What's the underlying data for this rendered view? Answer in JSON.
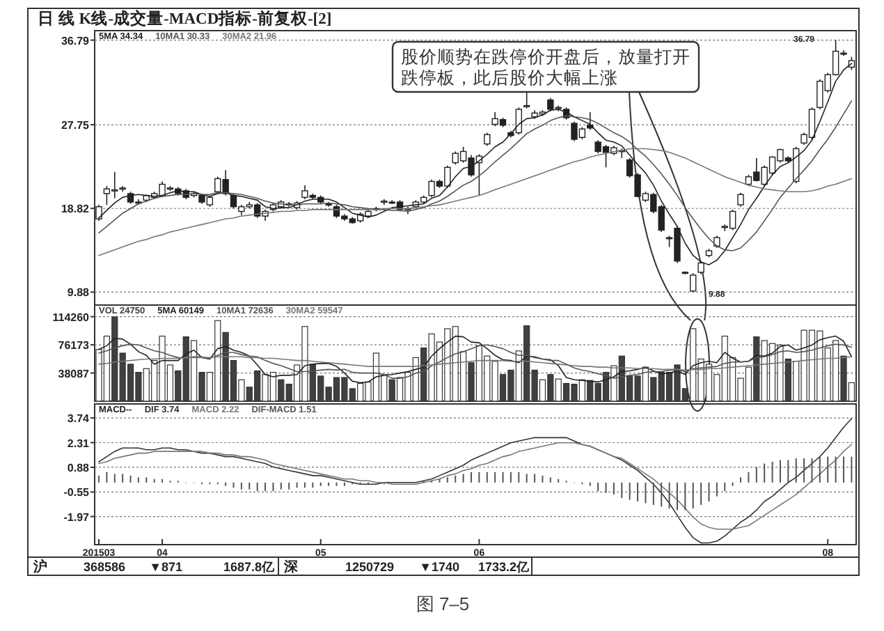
{
  "chart_data": [
    {
      "type": "candlestick",
      "title": "日 线 K线-成交量-MACD指标-前复权-[2]",
      "legend": "top left",
      "grid": "y",
      "tick_labels": "y",
      "categories": [
        null,
        null,
        null,
        null,
        null,
        null,
        null,
        null,
        null,
        null,
        null,
        null,
        null,
        null,
        null,
        null,
        null,
        null,
        null,
        null,
        null,
        null,
        null,
        null,
        null,
        null,
        null,
        null,
        null,
        null,
        null,
        null,
        null,
        null,
        null,
        null,
        null,
        null,
        null,
        null,
        null,
        null,
        null,
        null,
        null,
        null,
        null,
        null,
        null,
        null,
        null,
        null,
        null,
        null,
        null,
        null,
        null,
        null,
        null,
        null,
        null,
        null,
        null,
        null,
        null,
        null,
        null,
        null,
        null,
        null,
        null,
        null,
        null,
        null,
        null,
        null,
        null,
        null,
        null,
        null,
        null,
        null,
        null,
        null,
        null,
        null,
        null,
        null,
        null,
        null,
        null,
        null,
        null,
        null,
        null,
        null
      ],
      "ylim": [
        8.5,
        37.8
      ],
      "yticks": [
        9.88,
        18.82,
        27.75,
        36.79
      ],
      "ohlc": [
        [
          17.7,
          19.2,
          17.5,
          19.0
        ],
        [
          20.4,
          21.2,
          19.2,
          20.9
        ],
        [
          20.7,
          22.7,
          19.9,
          20.8
        ],
        [
          20.9,
          21.2,
          20.6,
          21.0
        ],
        [
          20.4,
          20.6,
          19.3,
          19.5
        ],
        [
          19.5,
          19.8,
          19.2,
          19.4
        ],
        [
          19.7,
          20.3,
          19.5,
          20.2
        ],
        [
          20.0,
          20.6,
          19.8,
          20.4
        ],
        [
          20.2,
          21.7,
          20.0,
          21.4
        ],
        [
          20.9,
          21.2,
          20.7,
          21.0
        ],
        [
          20.9,
          21.1,
          20.2,
          20.4
        ],
        [
          20.7,
          20.9,
          19.8,
          20.0
        ],
        [
          20.2,
          20.6,
          20.0,
          20.4
        ],
        [
          20.2,
          20.4,
          19.3,
          19.5
        ],
        [
          19.2,
          20.2,
          19.0,
          20.0
        ],
        [
          20.6,
          22.2,
          20.4,
          22.0
        ],
        [
          21.9,
          22.9,
          20.2,
          20.4
        ],
        [
          20.2,
          20.4,
          18.8,
          19.0
        ],
        [
          18.5,
          19.2,
          18.1,
          19.0
        ],
        [
          19.0,
          19.5,
          18.8,
          19.2
        ],
        [
          19.2,
          19.4,
          17.8,
          18.0
        ],
        [
          18.0,
          18.7,
          17.5,
          18.5
        ],
        [
          18.7,
          19.4,
          18.5,
          19.2
        ],
        [
          19.0,
          19.7,
          18.8,
          19.5
        ],
        [
          19.2,
          19.5,
          19.0,
          19.3
        ],
        [
          18.9,
          19.6,
          18.7,
          19.4
        ],
        [
          20.0,
          21.3,
          19.8,
          20.7
        ],
        [
          20.2,
          20.4,
          19.8,
          20.0
        ],
        [
          20.0,
          20.2,
          19.3,
          19.5
        ],
        [
          19.3,
          19.5,
          19.0,
          19.2
        ],
        [
          19.0,
          19.2,
          17.8,
          18.0
        ],
        [
          18.0,
          18.2,
          17.5,
          17.7
        ],
        [
          17.7,
          17.9,
          17.2,
          17.3
        ],
        [
          17.5,
          18.4,
          17.3,
          18.2
        ],
        [
          18.0,
          18.7,
          17.8,
          18.5
        ],
        [
          18.7,
          19.0,
          18.5,
          18.8
        ],
        [
          19.5,
          19.8,
          19.2,
          19.6
        ],
        [
          19.5,
          19.7,
          19.3,
          19.4
        ],
        [
          19.5,
          19.7,
          18.5,
          18.7
        ],
        [
          18.7,
          19.0,
          18.2,
          18.8
        ],
        [
          19.0,
          19.7,
          18.8,
          19.5
        ],
        [
          19.5,
          20.2,
          19.3,
          20.0
        ],
        [
          20.2,
          21.9,
          20.0,
          21.7
        ],
        [
          21.7,
          21.9,
          21.0,
          21.2
        ],
        [
          21.2,
          23.4,
          21.0,
          23.2
        ],
        [
          23.7,
          24.9,
          23.5,
          24.7
        ],
        [
          23.9,
          25.4,
          23.7,
          24.9
        ],
        [
          24.2,
          24.5,
          22.2,
          22.4
        ],
        [
          23.7,
          24.6,
          20.2,
          24.4
        ],
        [
          25.7,
          26.9,
          25.5,
          26.7
        ],
        [
          27.8,
          29.1,
          27.6,
          28.4
        ],
        [
          28.3,
          28.5,
          27.5,
          27.7
        ],
        [
          26.9,
          27.1,
          26.4,
          26.6
        ],
        [
          26.9,
          29.6,
          26.7,
          29.4
        ],
        [
          29.7,
          31.4,
          29.5,
          29.8
        ],
        [
          28.6,
          29.3,
          28.4,
          29.0
        ],
        [
          28.9,
          29.3,
          28.7,
          29.1
        ],
        [
          30.4,
          30.6,
          29.2,
          29.4
        ],
        [
          29.5,
          29.8,
          29.2,
          29.6
        ],
        [
          29.4,
          29.6,
          28.3,
          28.5
        ],
        [
          27.9,
          28.1,
          26.0,
          26.2
        ],
        [
          26.4,
          27.5,
          26.2,
          27.3
        ],
        [
          27.7,
          29.1,
          27.2,
          27.4
        ],
        [
          25.9,
          26.1,
          24.7,
          24.9
        ],
        [
          25.4,
          25.6,
          23.2,
          24.8
        ],
        [
          24.7,
          25.5,
          24.5,
          25.3
        ],
        [
          24.9,
          25.2,
          24.2,
          25.0
        ],
        [
          24.0,
          24.2,
          22.1,
          22.3
        ],
        [
          22.4,
          22.6,
          20.0,
          20.1
        ],
        [
          19.7,
          20.6,
          19.5,
          20.4
        ],
        [
          20.3,
          20.5,
          18.3,
          18.5
        ],
        [
          19.0,
          19.2,
          16.3,
          16.5
        ],
        [
          15.7,
          15.9,
          14.7,
          15.6
        ],
        [
          16.7,
          16.9,
          13.0,
          13.2
        ],
        [
          12.0,
          12.1,
          11.8,
          11.9
        ],
        [
          10.0,
          11.9,
          9.88,
          11.7
        ],
        [
          12.0,
          13.2,
          11.8,
          13.0
        ],
        [
          13.8,
          14.5,
          13.6,
          14.3
        ],
        [
          14.8,
          15.9,
          14.6,
          15.7
        ],
        [
          16.8,
          17.1,
          16.4,
          16.9
        ],
        [
          16.7,
          18.7,
          16.5,
          18.5
        ],
        [
          19.2,
          20.5,
          19.0,
          20.3
        ],
        [
          21.4,
          22.4,
          21.2,
          22.2
        ],
        [
          22.7,
          24.2,
          21.7,
          21.8
        ],
        [
          21.4,
          23.4,
          21.2,
          23.2
        ],
        [
          22.6,
          24.4,
          22.4,
          24.3
        ],
        [
          23.9,
          25.2,
          23.7,
          25.1
        ],
        [
          24.2,
          24.4,
          23.7,
          23.9
        ],
        [
          21.7,
          25.4,
          21.5,
          25.2
        ],
        [
          25.8,
          26.9,
          25.6,
          26.7
        ],
        [
          26.4,
          29.6,
          26.2,
          29.4
        ],
        [
          29.6,
          32.6,
          29.4,
          32.4
        ],
        [
          31.4,
          33.3,
          31.2,
          33.1
        ],
        [
          33.1,
          36.79,
          33.0,
          35.6
        ],
        [
          35.4,
          35.7,
          35.1,
          35.3
        ],
        [
          33.9,
          35.0,
          33.6,
          34.6
        ]
      ],
      "series": [
        {
          "name": "5MA 34.34",
          "type": "line",
          "color": "#222222",
          "values": [
            17.8,
            18.6,
            19.4,
            20.0,
            20.2,
            20.3,
            20.2,
            20.1,
            20.2,
            20.5,
            20.7,
            20.6,
            20.6,
            20.3,
            20.1,
            20.4,
            20.5,
            20.2,
            20.1,
            19.9,
            19.7,
            19.0,
            18.8,
            18.9,
            18.9,
            19.2,
            19.6,
            19.8,
            19.8,
            19.8,
            19.5,
            18.9,
            18.3,
            18.1,
            17.9,
            18.1,
            18.5,
            18.9,
            19.0,
            19.1,
            19.2,
            19.3,
            19.9,
            20.2,
            21.1,
            22.2,
            23.1,
            23.3,
            23.9,
            24.6,
            25.4,
            25.9,
            26.8,
            27.8,
            28.4,
            28.5,
            28.8,
            29.3,
            29.4,
            29.1,
            28.6,
            28.2,
            27.8,
            26.9,
            26.1,
            25.9,
            25.5,
            24.5,
            23.5,
            22.6,
            21.3,
            19.6,
            18.2,
            16.9,
            15.1,
            13.8,
            13.1,
            12.8,
            13.3,
            14.3,
            15.7,
            17.1,
            18.7,
            19.9,
            21.2,
            22.4,
            23.3,
            23.7,
            24.3,
            25.0,
            26.1,
            28.1,
            30.2,
            32.4,
            33.6,
            34.3
          ]
        },
        {
          "name": "10MA1 30.33",
          "type": "line",
          "color": "#555555",
          "values": [
            16.2,
            16.9,
            17.6,
            18.3,
            18.8,
            19.3,
            19.6,
            19.9,
            20.1,
            20.2,
            20.3,
            20.3,
            20.4,
            20.3,
            20.3,
            20.5,
            20.5,
            20.4,
            20.3,
            20.1,
            19.9,
            19.6,
            19.4,
            19.3,
            19.2,
            19.2,
            19.3,
            19.3,
            19.3,
            19.4,
            19.3,
            19.2,
            19.0,
            18.9,
            18.8,
            18.7,
            18.7,
            18.6,
            18.6,
            18.5,
            18.7,
            18.9,
            19.3,
            19.6,
            20.1,
            20.7,
            21.3,
            21.7,
            22.3,
            23.0,
            23.8,
            24.5,
            25.2,
            26.0,
            26.8,
            27.3,
            27.7,
            28.2,
            28.5,
            28.7,
            28.6,
            28.5,
            28.3,
            27.9,
            27.4,
            26.9,
            26.5,
            25.9,
            25.1,
            24.4,
            23.5,
            22.5,
            21.4,
            20.2,
            18.9,
            17.7,
            16.6,
            15.6,
            14.8,
            14.4,
            14.3,
            14.6,
            15.4,
            16.3,
            17.5,
            18.7,
            20.0,
            21.0,
            22.0,
            22.9,
            23.9,
            25.1,
            26.2,
            27.5,
            28.9,
            30.3
          ]
        },
        {
          "name": "30MA2 21.96",
          "type": "line",
          "color": "#777777",
          "values": [
            13.8,
            14.1,
            14.4,
            14.7,
            15.0,
            15.3,
            15.5,
            15.8,
            16.0,
            16.3,
            16.5,
            16.7,
            16.9,
            17.1,
            17.3,
            17.5,
            17.7,
            17.8,
            18.0,
            18.1,
            18.2,
            18.3,
            18.4,
            18.5,
            18.5,
            18.6,
            18.6,
            18.7,
            18.7,
            18.7,
            18.7,
            18.7,
            18.7,
            18.7,
            18.7,
            18.7,
            18.8,
            18.8,
            18.8,
            18.8,
            18.9,
            19.0,
            19.1,
            19.2,
            19.4,
            19.6,
            19.8,
            20.0,
            20.2,
            20.5,
            20.8,
            21.1,
            21.4,
            21.7,
            22.0,
            22.3,
            22.6,
            22.9,
            23.2,
            23.5,
            23.8,
            24.0,
            24.3,
            24.5,
            24.7,
            24.9,
            25.0,
            25.2,
            25.2,
            25.2,
            25.1,
            25.0,
            24.8,
            24.5,
            24.2,
            23.8,
            23.4,
            23.0,
            22.6,
            22.2,
            21.9,
            21.6,
            21.3,
            21.1,
            20.9,
            20.8,
            20.7,
            20.6,
            20.6,
            20.6,
            20.7,
            20.9,
            21.2,
            21.4,
            21.7,
            22.0
          ]
        }
      ],
      "annotations": [
        "股价顺势在跌停价开盘后，放量打开跌停板，此后股价大幅上涨",
        "9.88",
        "36.79"
      ]
    },
    {
      "type": "bar",
      "legend": "top left",
      "grid": "y",
      "tick_labels": "y",
      "categories": [
        null,
        null,
        null,
        null,
        null,
        null,
        null,
        null,
        null,
        null,
        null,
        null,
        null,
        null,
        null,
        null,
        null,
        null,
        null,
        null,
        null,
        null,
        null,
        null,
        null,
        null,
        null,
        null,
        null,
        null,
        null,
        null,
        null,
        null,
        null,
        null,
        null,
        null,
        null,
        null,
        null,
        null,
        null,
        null,
        null,
        null,
        null,
        null,
        null,
        null,
        null,
        null,
        null,
        null,
        null,
        null,
        null,
        null,
        null,
        null,
        null,
        null,
        null,
        null,
        null,
        null,
        null,
        null,
        null,
        null,
        null,
        null,
        null,
        null,
        null,
        null,
        null,
        null,
        null,
        null,
        null,
        null,
        null,
        null,
        null,
        null,
        null,
        null,
        null,
        null,
        null,
        null,
        null,
        null,
        null,
        null
      ],
      "ylim": [
        0,
        130000
      ],
      "yticks": [
        38087,
        76173,
        114260
      ],
      "series": [
        {
          "name": "VOL 24750",
          "color": "#404040",
          "values": [
            70000,
            88000,
            114000,
            65000,
            50000,
            39000,
            44000,
            55000,
            88000,
            49000,
            41000,
            87000,
            82000,
            39000,
            39000,
            109000,
            93000,
            55000,
            29000,
            19000,
            41000,
            36000,
            39000,
            29000,
            23000,
            49000,
            101000,
            50000,
            34000,
            19000,
            32000,
            32000,
            17000,
            24000,
            26000,
            65000,
            36000,
            29000,
            32000,
            39000,
            59000,
            72000,
            91000,
            80000,
            98000,
            101000,
            67000,
            52000,
            75000,
            61000,
            54000,
            36000,
            42000,
            68000,
            102000,
            42000,
            29000,
            36000,
            30000,
            24000,
            23000,
            29000,
            28000,
            24000,
            39000,
            48000,
            61000,
            34000,
            34000,
            46000,
            32000,
            39000,
            39000,
            49000,
            17000,
            98000,
            57000,
            50000,
            36000,
            88000,
            59000,
            31000,
            46000,
            87000,
            82000,
            78000,
            76000,
            57000,
            54000,
            96000,
            96000,
            95000,
            72000,
            82000,
            61000,
            25000
          ],
          "colors": [
            "#ffffff",
            "#ffffff",
            "#404040",
            "#404040",
            "#404040",
            "#404040",
            "#ffffff",
            "#ffffff",
            "#ffffff",
            "#ffffff",
            "#404040",
            "#404040",
            "#ffffff",
            "#404040",
            "#ffffff",
            "#ffffff",
            "#404040",
            "#404040",
            "#ffffff",
            "#404040",
            "#404040",
            "#ffffff",
            "#ffffff",
            "#404040",
            "#404040",
            "#ffffff",
            "#ffffff",
            "#404040",
            "#404040",
            "#404040",
            "#404040",
            "#404040",
            "#404040",
            "#ffffff",
            "#ffffff",
            "#ffffff",
            "#ffffff",
            "#404040",
            "#ffffff",
            "#ffffff",
            "#ffffff",
            "#404040",
            "#ffffff",
            "#ffffff",
            "#ffffff",
            "#ffffff",
            "#ffffff",
            "#404040",
            "#ffffff",
            "#ffffff",
            "#ffffff",
            "#404040",
            "#404040",
            "#ffffff",
            "#404040",
            "#404040",
            "#ffffff",
            "#404040",
            "#ffffff",
            "#404040",
            "#404040",
            "#ffffff",
            "#404040",
            "#404040",
            "#404040",
            "#ffffff",
            "#404040",
            "#404040",
            "#404040",
            "#ffffff",
            "#404040",
            "#404040",
            "#404040",
            "#404040",
            "#404040",
            "#ffffff",
            "#ffffff",
            "#ffffff",
            "#ffffff",
            "#ffffff",
            "#ffffff",
            "#ffffff",
            "#ffffff",
            "#404040",
            "#ffffff",
            "#ffffff",
            "#ffffff",
            "#404040",
            "#ffffff",
            "#ffffff",
            "#ffffff",
            "#ffffff",
            "#ffffff",
            "#ffffff",
            "#404040",
            "#ffffff"
          ]
        },
        {
          "name": "5MA 60149",
          "type": "line",
          "color": "#222222",
          "values": [
            70000,
            75000,
            85000,
            84000,
            77000,
            67000,
            62000,
            50000,
            55000,
            55000,
            55000,
            64000,
            69000,
            59000,
            57000,
            71000,
            74000,
            69000,
            66000,
            61000,
            49000,
            36000,
            33000,
            35000,
            35000,
            36000,
            48000,
            50000,
            51000,
            51000,
            47000,
            38000,
            27000,
            25000,
            26000,
            33000,
            35000,
            36000,
            38000,
            40000,
            43000,
            46000,
            61000,
            71000,
            80000,
            88000,
            87000,
            80000,
            79000,
            71000,
            62000,
            56000,
            55000,
            52000,
            61000,
            60000,
            57000,
            56000,
            48000,
            32000,
            29000,
            28000,
            27000,
            26000,
            29000,
            33000,
            40000,
            41000,
            43000,
            46000,
            41000,
            37000,
            38000,
            41000,
            36000,
            48000,
            52000,
            54000,
            52000,
            66000,
            58000,
            53000,
            54000,
            62000,
            61000,
            65000,
            74000,
            76000,
            69000,
            72000,
            76000,
            83000,
            86000,
            88000,
            81000,
            60000
          ]
        },
        {
          "name": "10MA1 72636",
          "type": "line",
          "color": "#555555",
          "values": [
            65000,
            68000,
            72000,
            75000,
            77000,
            76000,
            72000,
            68000,
            66000,
            62000,
            59000,
            58000,
            60000,
            60000,
            58000,
            62000,
            66000,
            66000,
            63000,
            61000,
            60000,
            55000,
            51000,
            48000,
            44000,
            40000,
            40000,
            41000,
            42000,
            43000,
            42000,
            43000,
            39000,
            38000,
            38000,
            38000,
            36000,
            31000,
            31000,
            33000,
            38000,
            40000,
            48000,
            53000,
            59000,
            64000,
            67000,
            71000,
            75000,
            76000,
            74000,
            71000,
            66000,
            62000,
            62000,
            59000,
            57000,
            55000,
            55000,
            50000,
            45000,
            42000,
            40000,
            37000,
            35000,
            31000,
            33000,
            35000,
            36000,
            39000,
            40000,
            40000,
            42000,
            42000,
            40000,
            44000,
            45000,
            46000,
            47000,
            51000,
            53000,
            53000,
            54000,
            59000,
            60000,
            63000,
            67000,
            68000,
            66000,
            67000,
            69000,
            72000,
            75000,
            77000,
            76000,
            73000
          ]
        },
        {
          "name": "30MA2 59547",
          "type": "line",
          "color": "#777777",
          "values": [
            50000,
            51000,
            53000,
            54000,
            55000,
            56000,
            57000,
            57000,
            58000,
            58000,
            58000,
            59000,
            59000,
            59000,
            59000,
            60000,
            60000,
            60000,
            60000,
            59000,
            59000,
            58000,
            58000,
            57000,
            56000,
            55000,
            55000,
            54000,
            53000,
            52000,
            51000,
            50000,
            49000,
            48000,
            47000,
            47000,
            47000,
            47000,
            47000,
            47000,
            47000,
            48000,
            49000,
            50000,
            51000,
            52000,
            53000,
            54000,
            55000,
            55000,
            55000,
            55000,
            54000,
            54000,
            54000,
            53000,
            52000,
            51000,
            50000,
            49000,
            48000,
            47000,
            47000,
            46000,
            46000,
            45000,
            45000,
            45000,
            44000,
            44000,
            44000,
            43000,
            43000,
            43000,
            42000,
            43000,
            43000,
            44000,
            44000,
            45000,
            46000,
            47000,
            48000,
            49000,
            50000,
            51000,
            52000,
            53000,
            54000,
            55000,
            56000,
            57000,
            58000,
            58000,
            59000,
            60000
          ]
        }
      ]
    },
    {
      "type": "line",
      "legend": "top left",
      "legend_title": "MACD--",
      "grid": "y",
      "categories": [
        "201503",
        null,
        null,
        null,
        null,
        null,
        null,
        null,
        "04",
        null,
        null,
        null,
        null,
        null,
        null,
        null,
        null,
        null,
        null,
        null,
        null,
        null,
        null,
        null,
        null,
        null,
        null,
        null,
        "05",
        null,
        null,
        null,
        null,
        null,
        null,
        null,
        null,
        null,
        null,
        null,
        null,
        null,
        null,
        null,
        null,
        null,
        null,
        null,
        "06",
        null,
        null,
        null,
        null,
        null,
        null,
        null,
        null,
        null,
        null,
        null,
        null,
        null,
        null,
        null,
        null,
        null,
        null,
        null,
        null,
        null,
        null,
        null,
        null,
        null,
        null,
        null,
        null,
        null,
        null,
        null,
        null,
        null,
        null,
        null,
        null,
        null,
        null,
        null,
        null,
        null,
        null,
        null,
        "08",
        null,
        null,
        null
      ],
      "ylim": [
        -3.6,
        4.55
      ],
      "yticks": [
        -1.97,
        -0.55,
        0.88,
        2.31,
        3.74
      ],
      "series": [
        {
          "name": "DIF 3.74",
          "color": "#333333",
          "values": [
            1.2,
            1.5,
            1.8,
            2.0,
            2.0,
            2.0,
            1.9,
            1.9,
            2.0,
            2.0,
            1.9,
            1.9,
            1.8,
            1.7,
            1.7,
            1.6,
            1.5,
            1.5,
            1.4,
            1.3,
            1.2,
            1.1,
            0.9,
            0.8,
            0.7,
            0.6,
            0.5,
            0.4,
            0.4,
            0.3,
            0.2,
            0.1,
            0.0,
            -0.1,
            -0.1,
            -0.1,
            0.0,
            0.0,
            0.0,
            0.0,
            0.0,
            0.1,
            0.2,
            0.4,
            0.6,
            0.8,
            1.0,
            1.3,
            1.5,
            1.7,
            1.9,
            2.1,
            2.3,
            2.4,
            2.5,
            2.6,
            2.6,
            2.6,
            2.6,
            2.6,
            2.4,
            2.2,
            2.1,
            1.9,
            1.7,
            1.5,
            1.3,
            1.0,
            0.7,
            0.3,
            -0.1,
            -0.6,
            -1.2,
            -1.9,
            -2.6,
            -3.2,
            -3.5,
            -3.5,
            -3.4,
            -3.1,
            -2.7,
            -2.3,
            -2.0,
            -1.6,
            -1.1,
            -0.8,
            -0.4,
            0.0,
            0.3,
            0.7,
            1.1,
            1.5,
            2.0,
            2.6,
            3.2,
            3.7
          ]
        },
        {
          "name": "MACD 2.22",
          "color": "#777777",
          "values": [
            1.1,
            1.2,
            1.4,
            1.5,
            1.6,
            1.7,
            1.7,
            1.8,
            1.8,
            1.8,
            1.8,
            1.8,
            1.8,
            1.8,
            1.7,
            1.7,
            1.6,
            1.6,
            1.5,
            1.5,
            1.4,
            1.3,
            1.1,
            1.0,
            0.9,
            0.8,
            0.7,
            0.6,
            0.5,
            0.4,
            0.3,
            0.2,
            0.2,
            0.1,
            0.1,
            0.0,
            0.0,
            -0.1,
            -0.1,
            -0.1,
            -0.1,
            0.0,
            0.1,
            0.2,
            0.4,
            0.5,
            0.7,
            0.8,
            1.0,
            1.1,
            1.3,
            1.5,
            1.6,
            1.8,
            1.9,
            2.0,
            2.1,
            2.2,
            2.3,
            2.3,
            2.3,
            2.2,
            2.1,
            1.9,
            1.7,
            1.5,
            1.4,
            1.1,
            0.8,
            0.5,
            0.2,
            -0.2,
            -0.6,
            -1.0,
            -1.5,
            -2.0,
            -2.4,
            -2.6,
            -2.7,
            -2.7,
            -2.7,
            -2.6,
            -2.5,
            -2.2,
            -1.9,
            -1.6,
            -1.3,
            -1.0,
            -0.7,
            -0.3,
            0.1,
            0.5,
            0.9,
            1.3,
            1.8,
            2.2
          ]
        },
        {
          "name": "DIF-MACD 1.51",
          "type": "bar",
          "color": "#555555",
          "values": [
            0.4,
            0.6,
            0.5,
            0.5,
            0.4,
            0.3,
            0.3,
            0.2,
            0.2,
            0.1,
            0.1,
            0.0,
            0.0,
            -0.1,
            -0.1,
            -0.1,
            -0.2,
            -0.3,
            -0.4,
            -0.4,
            -0.5,
            -0.5,
            -0.5,
            -0.4,
            -0.4,
            -0.3,
            -0.3,
            -0.3,
            -0.2,
            -0.2,
            -0.2,
            -0.2,
            -0.1,
            -0.1,
            -0.1,
            null,
            -0.1,
            0.0,
            0.0,
            0.0,
            0.0,
            0.1,
            0.1,
            0.2,
            0.3,
            0.4,
            0.5,
            0.6,
            0.6,
            0.6,
            0.6,
            0.6,
            0.6,
            0.6,
            0.5,
            0.5,
            0.4,
            0.3,
            0.2,
            0.1,
            0.0,
            -0.1,
            -0.2,
            -0.5,
            -0.6,
            -0.7,
            -0.9,
            -1.0,
            -1.1,
            -1.2,
            -1.3,
            -1.4,
            -1.5,
            -1.6,
            -1.6,
            -1.5,
            -1.3,
            -1.1,
            -0.8,
            -0.5,
            -0.2,
            0.3,
            0.6,
            0.9,
            1.1,
            1.2,
            1.3,
            1.3,
            1.4,
            1.4,
            1.4,
            1.5,
            1.5,
            1.5,
            1.5,
            1.5
          ]
        }
      ],
      "annotations": [
        "沪",
        "368586",
        "▼871",
        "1687.8亿",
        "深",
        "1250729",
        "▼1740",
        "1733.2亿",
        "图 7–5"
      ]
    }
  ]
}
